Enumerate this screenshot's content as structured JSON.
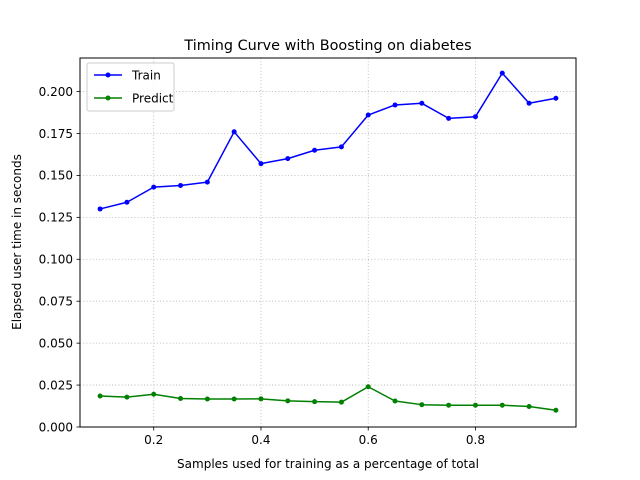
{
  "chart_data": {
    "type": "line",
    "title": "Timing Curve with Boosting on diabetes",
    "xlabel": "Samples used for training as a percentage of total",
    "ylabel": "Elapsed user time in seconds",
    "xlim": [
      0.0625,
      0.9875
    ],
    "ylim": [
      0.0,
      0.22
    ],
    "xticks": [
      0.2,
      0.4,
      0.6,
      0.8
    ],
    "xtick_labels": [
      "0.2",
      "0.4",
      "0.6",
      "0.8"
    ],
    "yticks": [
      0.0,
      0.025,
      0.05,
      0.075,
      0.1,
      0.125,
      0.15,
      0.175,
      0.2
    ],
    "ytick_labels": [
      "0.000",
      "0.025",
      "0.050",
      "0.075",
      "0.100",
      "0.125",
      "0.150",
      "0.175",
      "0.200"
    ],
    "grid": true,
    "legend_position": "top-left",
    "x": [
      0.1,
      0.15,
      0.2,
      0.25,
      0.3,
      0.35,
      0.4,
      0.45,
      0.5,
      0.55,
      0.6,
      0.65,
      0.7,
      0.75,
      0.8,
      0.85,
      0.9,
      0.95
    ],
    "series": [
      {
        "name": "Train",
        "color": "#0000ff",
        "marker": "dot",
        "values": [
          0.13,
          0.134,
          0.143,
          0.144,
          0.146,
          0.176,
          0.157,
          0.16,
          0.165,
          0.167,
          0.186,
          0.192,
          0.193,
          0.184,
          0.185,
          0.211,
          0.193,
          0.196
        ]
      },
      {
        "name": "Predict",
        "color": "#008000",
        "marker": "dot",
        "values": [
          0.0185,
          0.0178,
          0.0195,
          0.017,
          0.0167,
          0.0167,
          0.0168,
          0.0156,
          0.0151,
          0.0148,
          0.024,
          0.0155,
          0.0133,
          0.013,
          0.013,
          0.013,
          0.0122,
          0.01
        ]
      }
    ]
  }
}
